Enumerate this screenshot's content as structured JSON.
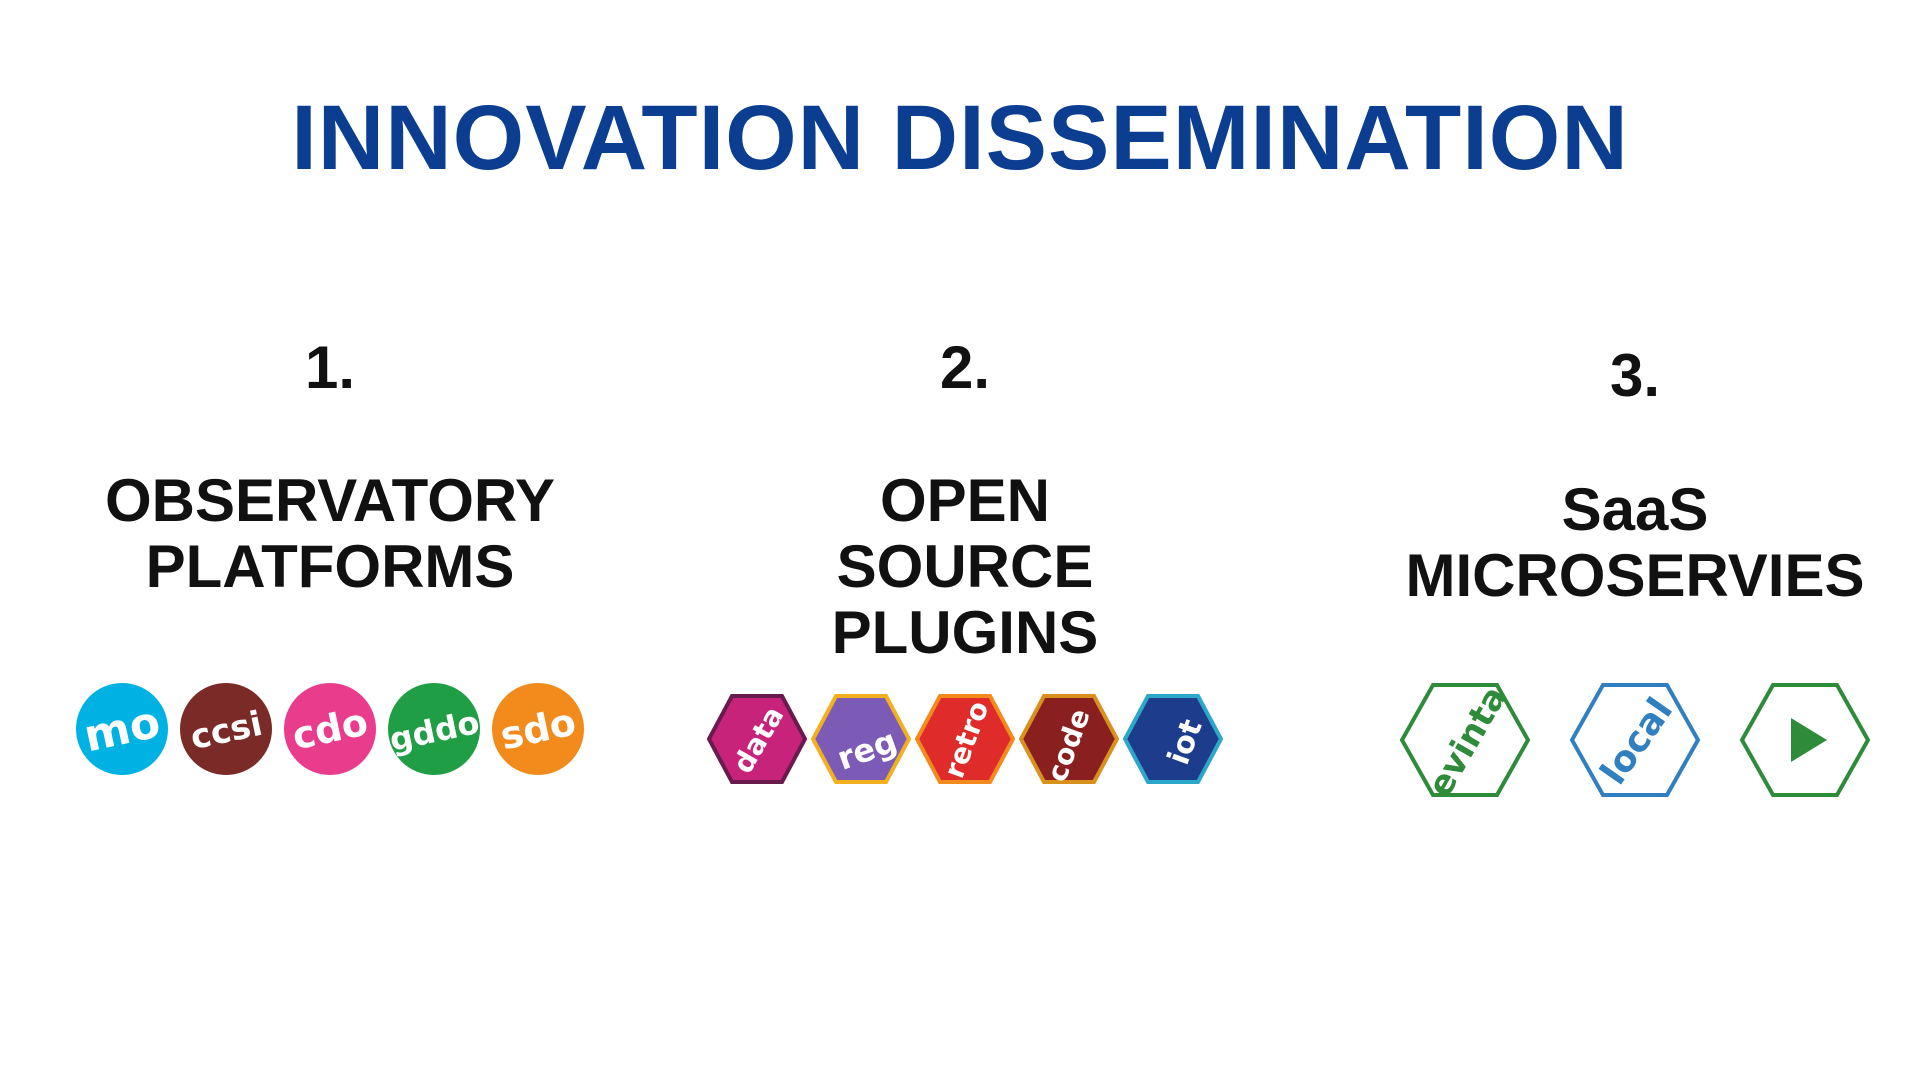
{
  "title": "INNOVATION DISSEMINATION",
  "colors": {
    "title": "#0b3d91",
    "text": "#111111"
  },
  "columns": [
    {
      "number": "1.",
      "heading_lines": [
        "OBSERVATORY",
        "PLATFORMS"
      ],
      "logos": [
        {
          "text": "mo",
          "shape": "circle",
          "color": "#00b1e3",
          "text_color": "#ffffff"
        },
        {
          "text": "ccsi",
          "shape": "circle",
          "color": "#7a2a27",
          "text_color": "#ffffff"
        },
        {
          "text": "cdo",
          "shape": "circle",
          "color": "#ea3c8c",
          "text_color": "#ffffff"
        },
        {
          "text": "gddo",
          "shape": "circle",
          "color": "#1f9e46",
          "text_color": "#ffffff"
        },
        {
          "text": "sdo",
          "shape": "circle",
          "color": "#f28a1c",
          "text_color": "#ffffff"
        }
      ]
    },
    {
      "number": "2.",
      "heading_lines": [
        "OPEN",
        "SOURCE",
        "PLUGINS"
      ],
      "logos": [
        {
          "text": "data",
          "shape": "hexagon",
          "color": "#c8237a",
          "border": "#6a1b4d",
          "text_color": "#ffffff"
        },
        {
          "text": "reg",
          "shape": "hexagon",
          "color": "#7b5bb5",
          "border": "#f2b01e",
          "text_color": "#ffffff"
        },
        {
          "text": "retro",
          "shape": "hexagon",
          "color": "#e02b2b",
          "border": "#f28a1c",
          "text_color": "#ffffff"
        },
        {
          "text": "code",
          "shape": "hexagon",
          "color": "#8a1f1f",
          "border": "#d9911e",
          "text_color": "#ffffff"
        },
        {
          "text": "iot",
          "shape": "hexagon",
          "color": "#1e3c8c",
          "border": "#2aa7c9",
          "text_color": "#ffffff"
        }
      ]
    },
    {
      "number": "3.",
      "heading_lines": [
        "SaaS",
        "MICROSERVIES"
      ],
      "logos": [
        {
          "text": "evinta",
          "shape": "hexagon-outline",
          "color": "#2e8b3a",
          "text_color": "#2e8b3a"
        },
        {
          "text": "local",
          "shape": "hexagon-outline",
          "color": "#2f7fc1",
          "text_color": "#2f7fc1"
        },
        {
          "text": "",
          "icon": "play-icon",
          "shape": "hexagon-outline",
          "color": "#2e8b3a",
          "text_color": "#2e8b3a"
        }
      ]
    }
  ]
}
